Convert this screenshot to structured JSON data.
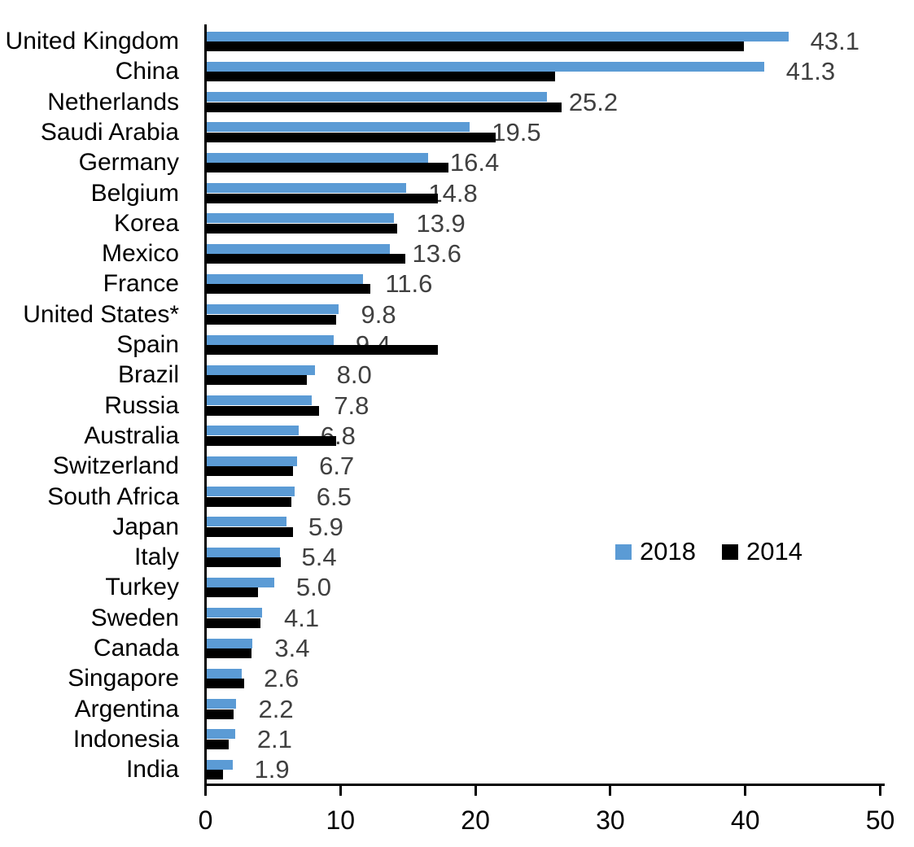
{
  "chart_data": {
    "type": "bar",
    "orientation": "horizontal",
    "title": "",
    "xlabel": "",
    "ylabel": "",
    "xlim": [
      0,
      50
    ],
    "xticks": [
      "0",
      "10",
      "20",
      "30",
      "40",
      "50"
    ],
    "grid": false,
    "legend_position": "middle-right",
    "categories": [
      "United Kingdom",
      "China",
      "Netherlands",
      "Saudi Arabia",
      "Germany",
      "Belgium",
      "Korea",
      "Mexico",
      "France",
      "United States*",
      "Spain",
      "Brazil",
      "Russia",
      "Australia",
      "Switzerland",
      "South Africa",
      "Japan",
      "Italy",
      "Turkey",
      "Sweden",
      "Canada",
      "Singapore",
      "Argentina",
      "Indonesia",
      "India"
    ],
    "series": [
      {
        "name": "2018",
        "color": "#5B9BD5",
        "values": [
          43.1,
          41.3,
          25.2,
          19.5,
          16.4,
          14.8,
          13.9,
          13.6,
          11.6,
          9.8,
          9.4,
          8.0,
          7.8,
          6.8,
          6.7,
          6.5,
          5.9,
          5.4,
          5.0,
          4.1,
          3.4,
          2.6,
          2.2,
          2.1,
          1.9
        ]
      },
      {
        "name": "2014",
        "color": "#000000",
        "values": [
          39.8,
          25.8,
          26.3,
          21.4,
          17.9,
          17.1,
          14.1,
          14.7,
          12.1,
          9.6,
          17.1,
          7.4,
          8.3,
          9.6,
          6.4,
          6.3,
          6.4,
          5.5,
          3.8,
          4.0,
          3.3,
          2.8,
          2.0,
          1.6,
          1.2
        ]
      }
    ],
    "value_labels": [
      "43.1",
      "41.3",
      "25.2",
      "19.5",
      "16.4",
      "14.8",
      "13.9",
      "13.6",
      "11.6",
      "9.8",
      "9.4",
      "8.0",
      "7.8",
      "6.8",
      "6.7",
      "6.5",
      "5.9",
      "5.4",
      "5.0",
      "4.1",
      "3.4",
      "2.6",
      "2.2",
      "2.1",
      "1.9"
    ],
    "value_label_series": "2018",
    "value_label_color": "#404040"
  }
}
